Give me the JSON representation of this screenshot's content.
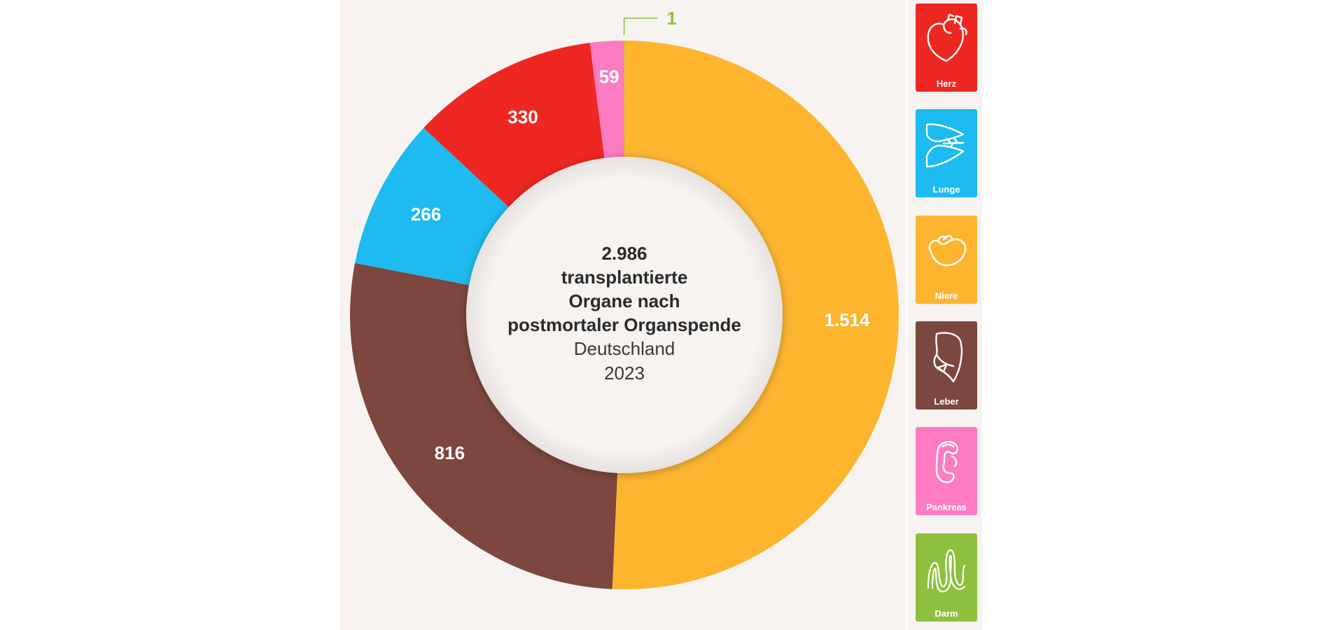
{
  "chart_data": {
    "type": "pie",
    "variant": "donut",
    "center_text": {
      "strong": [
        "2.986",
        "transplantierte",
        "Organe nach",
        "postmortaler Organspende"
      ],
      "light": [
        "Deutschland",
        "2023"
      ]
    },
    "slices": [
      {
        "name": "Niere",
        "value": 1514,
        "label": "1.514",
        "color": "#fdb530"
      },
      {
        "name": "Leber",
        "value": 816,
        "label": "816",
        "color": "#7c473e"
      },
      {
        "name": "Lunge",
        "value": 266,
        "label": "266",
        "color": "#1dbbef"
      },
      {
        "name": "Herz",
        "value": 330,
        "label": "330",
        "color": "#ee2722"
      },
      {
        "name": "Pankreas",
        "value": 59,
        "label": "59",
        "color": "#fb7cc0"
      },
      {
        "name": "Darm",
        "value": 1,
        "label": "1",
        "color": "#8dc03e"
      }
    ]
  },
  "legend": [
    {
      "label": "Herz",
      "color": "#ee2722",
      "icon": "heart-icon"
    },
    {
      "label": "Lunge",
      "color": "#1dbbef",
      "icon": "lung-icon"
    },
    {
      "label": "Niere",
      "color": "#fdb530",
      "icon": "kidney-icon"
    },
    {
      "label": "Leber",
      "color": "#7c473e",
      "icon": "liver-icon"
    },
    {
      "label": "Pankreas",
      "color": "#fb7cc0",
      "icon": "pancreas-icon"
    },
    {
      "label": "Darm",
      "color": "#8dc03e",
      "icon": "intestine-icon"
    }
  ]
}
